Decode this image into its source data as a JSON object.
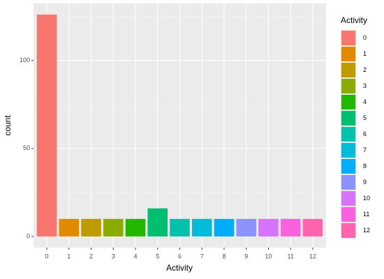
{
  "chart_data": {
    "type": "bar",
    "x_label": "Activity",
    "y_label": "count",
    "legend_title": "Activity",
    "categories": [
      "0",
      "1",
      "2",
      "3",
      "4",
      "5",
      "6",
      "7",
      "8",
      "9",
      "10",
      "11",
      "12"
    ],
    "values": [
      126,
      10,
      10,
      10,
      10,
      16,
      10,
      10,
      10,
      10,
      10,
      10,
      10
    ],
    "colors": [
      "#F8766D",
      "#E18A00",
      "#BE9C00",
      "#8CAB00",
      "#24B700",
      "#00BE70",
      "#00C1AB",
      "#00BBDA",
      "#00ACFC",
      "#8B93FF",
      "#D575FE",
      "#F962DD",
      "#FF65AC"
    ],
    "ylim": [
      -6.3,
      132.3
    ],
    "yticks": [
      0,
      50,
      100
    ],
    "y_minor_grid": [
      25,
      75,
      125
    ],
    "grid": true,
    "legend": "right"
  }
}
